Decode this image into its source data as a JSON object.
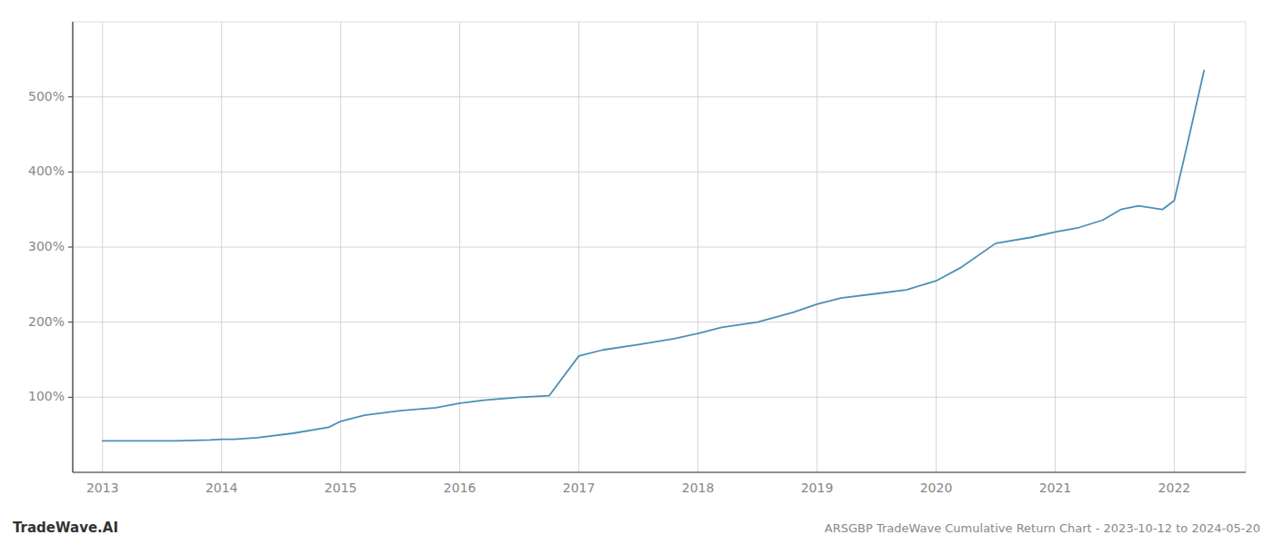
{
  "chart_data": {
    "type": "line",
    "title": "ARSGBP TradeWave Cumulative Return Chart - 2023-10-12 to 2024-05-20",
    "annotations": [
      "TradeWave.AI"
    ],
    "color": "#4A90B8",
    "grid": true,
    "x": [
      2013.0,
      2013.1,
      2013.3,
      2013.6,
      2013.9,
      2014.0,
      2014.1,
      2014.3,
      2014.6,
      2014.9,
      2015.0,
      2015.2,
      2015.5,
      2015.8,
      2016.0,
      2016.2,
      2016.5,
      2016.75,
      2017.0,
      2017.2,
      2017.5,
      2017.8,
      2018.0,
      2018.2,
      2018.5,
      2018.8,
      2019.0,
      2019.2,
      2019.5,
      2019.75,
      2020.0,
      2020.2,
      2020.5,
      2020.8,
      2021.0,
      2021.2,
      2021.4,
      2021.55,
      2021.7,
      2021.9,
      2022.0,
      2022.1,
      2022.25
    ],
    "values": [
      42,
      42,
      42,
      42,
      43,
      44,
      44,
      46,
      52,
      60,
      68,
      76,
      82,
      86,
      92,
      96,
      100,
      102,
      155,
      163,
      170,
      178,
      185,
      193,
      200,
      213,
      224,
      232,
      238,
      243,
      255,
      272,
      305,
      313,
      320,
      326,
      336,
      350,
      355,
      350,
      362,
      430,
      535
    ],
    "xlim": [
      2012.75,
      2022.6
    ],
    "xticks": [
      2013,
      2014,
      2015,
      2016,
      2017,
      2018,
      2019,
      2020,
      2021,
      2022
    ],
    "ylim": [
      0,
      600
    ],
    "yticks": [
      {
        "value": 100,
        "label": "100%"
      },
      {
        "value": 200,
        "label": "200%"
      },
      {
        "value": 300,
        "label": "300%"
      },
      {
        "value": 400,
        "label": "400%"
      },
      {
        "value": 500,
        "label": "500%"
      }
    ]
  }
}
